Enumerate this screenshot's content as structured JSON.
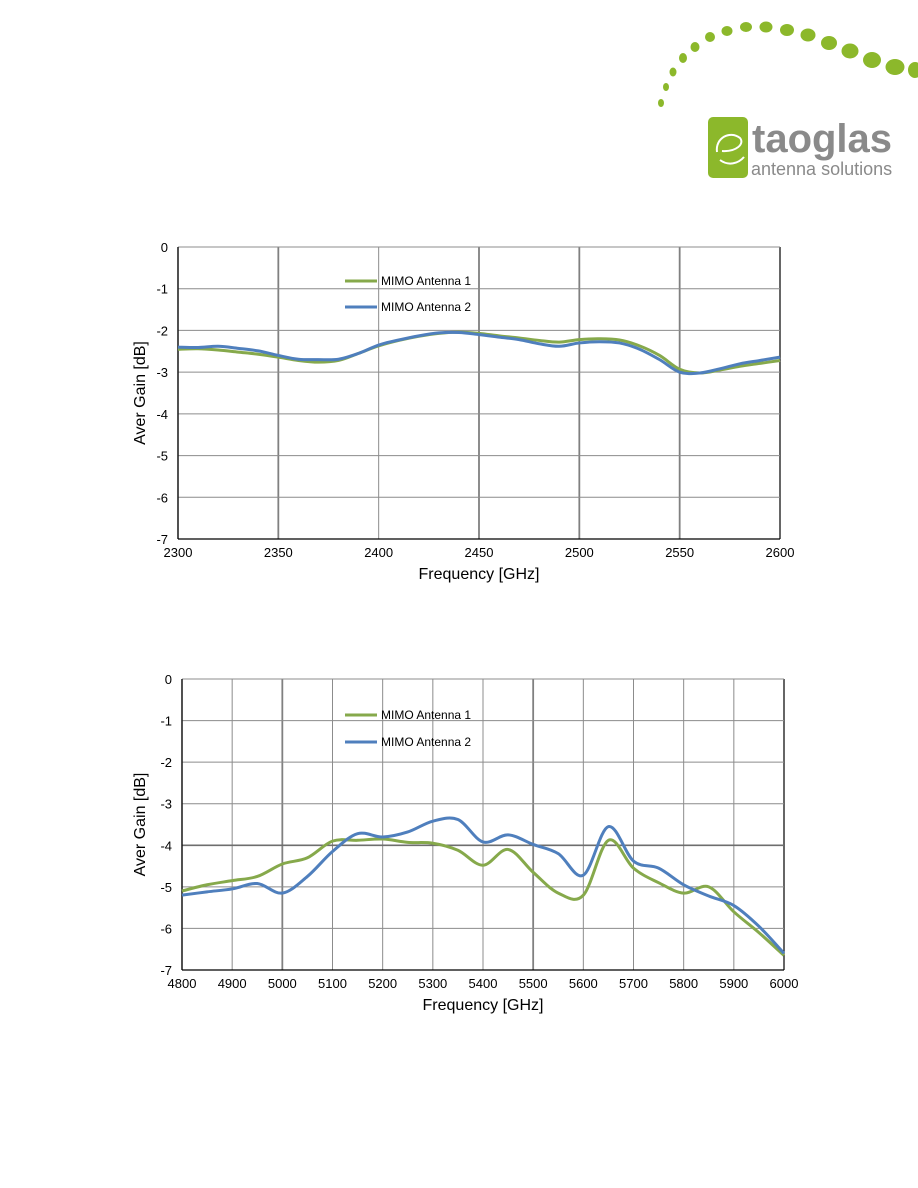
{
  "brand": {
    "name": "taoglas",
    "tagline": "antenna solutions",
    "colors": {
      "green": "#8cb82b",
      "text_gray": "#8a8a8a"
    }
  },
  "chart_data": [
    {
      "type": "line",
      "xlabel": "Frequency [GHz]",
      "ylabel": "Aver Gain [dB]",
      "xlim": [
        2300,
        2600
      ],
      "ylim": [
        -7,
        0
      ],
      "x_ticks": [
        2300,
        2350,
        2400,
        2450,
        2500,
        2550,
        2600
      ],
      "y_ticks": [
        0,
        -1,
        -2,
        -3,
        -4,
        -5,
        -6,
        -7
      ],
      "grid": true,
      "legend_position": "top-center",
      "series": [
        {
          "name": "MIMO Antenna 1",
          "color": "#86a94b",
          "x": [
            2300,
            2310,
            2320,
            2330,
            2340,
            2350,
            2360,
            2370,
            2380,
            2390,
            2400,
            2410,
            2420,
            2430,
            2440,
            2450,
            2460,
            2470,
            2480,
            2490,
            2500,
            2510,
            2520,
            2530,
            2540,
            2550,
            2560,
            2570,
            2580,
            2590,
            2600
          ],
          "y": [
            -2.45,
            -2.44,
            -2.47,
            -2.52,
            -2.57,
            -2.64,
            -2.72,
            -2.76,
            -2.72,
            -2.55,
            -2.37,
            -2.24,
            -2.14,
            -2.07,
            -2.04,
            -2.07,
            -2.13,
            -2.18,
            -2.24,
            -2.28,
            -2.22,
            -2.2,
            -2.23,
            -2.37,
            -2.6,
            -2.93,
            -3.02,
            -2.95,
            -2.86,
            -2.79,
            -2.72
          ]
        },
        {
          "name": "MIMO Antenna 2",
          "color": "#4f7fbd",
          "x": [
            2300,
            2310,
            2320,
            2330,
            2340,
            2350,
            2360,
            2370,
            2380,
            2390,
            2400,
            2410,
            2420,
            2430,
            2440,
            2450,
            2460,
            2470,
            2480,
            2490,
            2500,
            2510,
            2520,
            2530,
            2540,
            2550,
            2560,
            2570,
            2580,
            2590,
            2600
          ],
          "y": [
            -2.4,
            -2.41,
            -2.38,
            -2.43,
            -2.49,
            -2.6,
            -2.69,
            -2.7,
            -2.69,
            -2.55,
            -2.35,
            -2.23,
            -2.13,
            -2.06,
            -2.05,
            -2.1,
            -2.16,
            -2.22,
            -2.32,
            -2.38,
            -2.3,
            -2.27,
            -2.3,
            -2.45,
            -2.7,
            -3.0,
            -3.02,
            -2.92,
            -2.8,
            -2.72,
            -2.64
          ]
        }
      ]
    },
    {
      "type": "line",
      "xlabel": "Frequency [GHz]",
      "ylabel": "Aver Gain [dB]",
      "xlim": [
        4800,
        6000
      ],
      "ylim": [
        -7,
        0
      ],
      "x_ticks": [
        4800,
        4900,
        5000,
        5100,
        5200,
        5300,
        5400,
        5500,
        5600,
        5700,
        5800,
        5900,
        6000
      ],
      "y_ticks": [
        0,
        -1,
        -2,
        -3,
        -4,
        -5,
        -6,
        -7
      ],
      "grid": true,
      "legend_position": "top-center",
      "series": [
        {
          "name": "MIMO Antenna 1",
          "color": "#86a94b",
          "x": [
            4800,
            4850,
            4900,
            4950,
            5000,
            5050,
            5100,
            5150,
            5200,
            5250,
            5300,
            5350,
            5400,
            5450,
            5500,
            5550,
            5600,
            5650,
            5700,
            5750,
            5800,
            5850,
            5900,
            5950,
            6000
          ],
          "y": [
            -5.1,
            -4.95,
            -4.85,
            -4.75,
            -4.45,
            -4.3,
            -3.9,
            -3.88,
            -3.85,
            -3.93,
            -3.95,
            -4.12,
            -4.48,
            -4.1,
            -4.65,
            -5.15,
            -5.2,
            -3.88,
            -4.55,
            -4.9,
            -5.15,
            -5.0,
            -5.6,
            -6.1,
            -6.65
          ]
        },
        {
          "name": "MIMO Antenna 2",
          "color": "#4f7fbd",
          "x": [
            4800,
            4850,
            4900,
            4950,
            5000,
            5050,
            5100,
            5150,
            5200,
            5250,
            5300,
            5350,
            5400,
            5450,
            5500,
            5550,
            5600,
            5650,
            5700,
            5750,
            5800,
            5850,
            5900,
            5950,
            6000
          ],
          "y": [
            -5.2,
            -5.12,
            -5.05,
            -4.92,
            -5.15,
            -4.75,
            -4.15,
            -3.72,
            -3.8,
            -3.68,
            -3.42,
            -3.38,
            -3.92,
            -3.75,
            -3.98,
            -4.2,
            -4.72,
            -3.55,
            -4.38,
            -4.55,
            -4.95,
            -5.22,
            -5.45,
            -5.95,
            -6.6
          ]
        }
      ]
    }
  ]
}
